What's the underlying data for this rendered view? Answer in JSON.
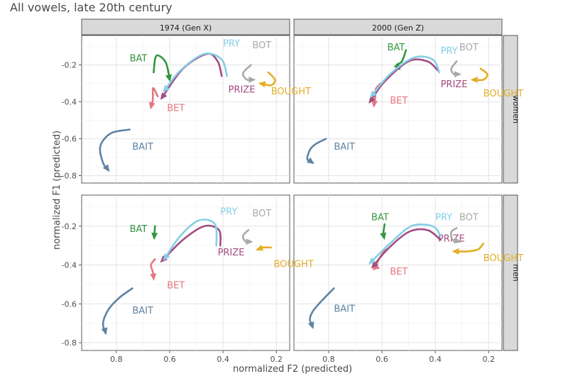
{
  "chart_data": {
    "type": "line",
    "title": "All vowels, late 20th century",
    "xlabel": "normalized F2 (predicted)",
    "ylabel": "normalized F1 (predicted)",
    "xlim": [
      0.93,
      0.15
    ],
    "ylim": [
      -0.04,
      -0.84
    ],
    "xticks": [
      "0.8",
      "0.6",
      "0.4",
      "0.2"
    ],
    "yticks": [
      "-0.8",
      "-0.6",
      "-0.4",
      "-0.2"
    ],
    "x_reversed": true,
    "y_reversed": true,
    "columns": [
      "1974 (Gen X)",
      "2000 (Gen Z)"
    ],
    "rows": [
      "women",
      "men"
    ],
    "grid": true,
    "colors": {
      "BAIT": "#5e83a3",
      "BET": "#e5767f",
      "BAT": "#33963f",
      "PRIZE": "#a34c83",
      "PRY": "#86cfe6",
      "BOUGHT": "#e4ae25",
      "BOT": "#a9a9a9"
    },
    "panels": [
      {
        "column": "1974 (Gen X)",
        "row": "women",
        "series": [
          {
            "name": "BAIT",
            "points": [
              [
                0.75,
                -0.55
              ],
              [
                0.82,
                -0.57
              ],
              [
                0.86,
                -0.64
              ],
              [
                0.85,
                -0.73
              ],
              [
                0.83,
                -0.77
              ]
            ],
            "label": [
              0.74,
              -0.66
            ]
          },
          {
            "name": "BET",
            "points": [
              [
                0.645,
                -0.37
              ],
              [
                0.662,
                -0.325
              ],
              [
                0.663,
                -0.385
              ],
              [
                0.67,
                -0.43
              ]
            ],
            "label": [
              0.61,
              -0.45
            ]
          },
          {
            "name": "BAT",
            "points": [
              [
                0.66,
                -0.24
              ],
              [
                0.65,
                -0.15
              ],
              [
                0.615,
                -0.185
              ],
              [
                0.6,
                -0.28
              ]
            ],
            "label": [
              0.75,
              -0.18
            ]
          },
          {
            "name": "PRIZE",
            "points": [
              [
                0.405,
                -0.26
              ],
              [
                0.42,
                -0.18
              ],
              [
                0.46,
                -0.14
              ],
              [
                0.55,
                -0.22
              ],
              [
                0.63,
                -0.38
              ]
            ],
            "label": [
              0.38,
              -0.35
            ]
          },
          {
            "name": "PRY",
            "points": [
              [
                0.385,
                -0.26
              ],
              [
                0.405,
                -0.17
              ],
              [
                0.47,
                -0.14
              ],
              [
                0.56,
                -0.23
              ],
              [
                0.62,
                -0.34
              ]
            ],
            "label": [
              0.4,
              -0.1
            ]
          },
          {
            "name": "BOUGHT",
            "points": [
              [
                0.23,
                -0.24
              ],
              [
                0.205,
                -0.28
              ],
              [
                0.22,
                -0.31
              ],
              [
                0.26,
                -0.3
              ]
            ],
            "label": [
              0.22,
              -0.36
            ]
          },
          {
            "name": "BOT",
            "points": [
              [
                0.295,
                -0.2
              ],
              [
                0.325,
                -0.245
              ],
              [
                0.31,
                -0.28
              ],
              [
                0.285,
                -0.28
              ]
            ],
            "label": [
              0.29,
              -0.11
            ]
          }
        ]
      },
      {
        "column": "2000 (Gen Z)",
        "row": "women",
        "series": [
          {
            "name": "BAIT",
            "points": [
              [
                0.81,
                -0.6
              ],
              [
                0.85,
                -0.63
              ],
              [
                0.87,
                -0.66
              ],
              [
                0.88,
                -0.71
              ],
              [
                0.86,
                -0.73
              ]
            ],
            "label": [
              0.78,
              -0.66
            ]
          },
          {
            "name": "BET",
            "points": [
              [
                0.605,
                -0.3
              ],
              [
                0.623,
                -0.33
              ],
              [
                0.625,
                -0.37
              ],
              [
                0.63,
                -0.42
              ]
            ],
            "label": [
              0.57,
              -0.41
            ]
          },
          {
            "name": "BAT",
            "points": [
              [
                0.51,
                -0.12
              ],
              [
                0.525,
                -0.18
              ],
              [
                0.545,
                -0.2
              ],
              [
                0.535,
                -0.22
              ]
            ],
            "label": [
              0.58,
              -0.12
            ]
          },
          {
            "name": "PRIZE",
            "points": [
              [
                0.39,
                -0.23
              ],
              [
                0.43,
                -0.18
              ],
              [
                0.5,
                -0.18
              ],
              [
                0.59,
                -0.29
              ],
              [
                0.645,
                -0.4
              ]
            ],
            "label": [
              0.38,
              -0.32
            ]
          },
          {
            "name": "PRY",
            "points": [
              [
                0.385,
                -0.24
              ],
              [
                0.41,
                -0.17
              ],
              [
                0.48,
                -0.16
              ],
              [
                0.57,
                -0.25
              ],
              [
                0.64,
                -0.37
              ]
            ],
            "label": [
              0.38,
              -0.14
            ]
          },
          {
            "name": "BOUGHT",
            "points": [
              [
                0.23,
                -0.22
              ],
              [
                0.205,
                -0.25
              ],
              [
                0.22,
                -0.28
              ],
              [
                0.26,
                -0.28
              ]
            ],
            "label": [
              0.22,
              -0.37
            ]
          },
          {
            "name": "BOT",
            "points": [
              [
                0.32,
                -0.18
              ],
              [
                0.34,
                -0.22
              ],
              [
                0.33,
                -0.25
              ],
              [
                0.31,
                -0.25
              ]
            ],
            "label": [
              0.31,
              -0.12
            ]
          }
        ]
      },
      {
        "column": "1974 (Gen X)",
        "row": "men",
        "series": [
          {
            "name": "BAIT",
            "points": [
              [
                0.74,
                -0.52
              ],
              [
                0.79,
                -0.57
              ],
              [
                0.83,
                -0.63
              ],
              [
                0.85,
                -0.7
              ],
              [
                0.84,
                -0.75
              ]
            ],
            "label": [
              0.74,
              -0.65
            ]
          },
          {
            "name": "BET",
            "points": [
              [
                0.655,
                -0.37
              ],
              [
                0.67,
                -0.4
              ],
              [
                0.662,
                -0.44
              ],
              [
                0.66,
                -0.47
              ]
            ],
            "label": [
              0.61,
              -0.52
            ]
          },
          {
            "name": "BAT",
            "points": [
              [
                0.655,
                -0.2
              ],
              [
                0.658,
                -0.26
              ]
            ],
            "label": [
              0.75,
              -0.23
            ]
          },
          {
            "name": "PRIZE",
            "points": [
              [
                0.41,
                -0.3
              ],
              [
                0.415,
                -0.22
              ],
              [
                0.47,
                -0.2
              ],
              [
                0.55,
                -0.27
              ],
              [
                0.63,
                -0.38
              ]
            ],
            "label": [
              0.42,
              -0.35
            ]
          },
          {
            "name": "PRY",
            "points": [
              [
                0.425,
                -0.3
              ],
              [
                0.43,
                -0.19
              ],
              [
                0.49,
                -0.17
              ],
              [
                0.56,
                -0.25
              ],
              [
                0.62,
                -0.37
              ]
            ],
            "label": [
              0.41,
              -0.14
            ]
          },
          {
            "name": "BOUGHT",
            "points": [
              [
                0.22,
                -0.31
              ],
              [
                0.25,
                -0.31
              ],
              [
                0.27,
                -0.32
              ]
            ],
            "label": [
              0.21,
              -0.41
            ]
          },
          {
            "name": "BOT",
            "points": [
              [
                0.305,
                -0.22
              ],
              [
                0.325,
                -0.25
              ],
              [
                0.315,
                -0.28
              ],
              [
                0.295,
                -0.28
              ]
            ],
            "label": [
              0.29,
              -0.15
            ]
          }
        ]
      },
      {
        "column": "2000 (Gen Z)",
        "row": "men",
        "series": [
          {
            "name": "BAIT",
            "points": [
              [
                0.78,
                -0.52
              ],
              [
                0.83,
                -0.59
              ],
              [
                0.86,
                -0.64
              ],
              [
                0.87,
                -0.68
              ],
              [
                0.86,
                -0.72
              ]
            ],
            "label": [
              0.78,
              -0.64
            ]
          },
          {
            "name": "BET",
            "points": [
              [
                0.58,
                -0.3
              ],
              [
                0.615,
                -0.38
              ],
              [
                0.62,
                -0.41
              ],
              [
                0.63,
                -0.42
              ]
            ],
            "label": [
              0.57,
              -0.45
            ]
          },
          {
            "name": "BAT",
            "points": [
              [
                0.59,
                -0.19
              ],
              [
                0.595,
                -0.24
              ],
              [
                0.592,
                -0.26
              ]
            ],
            "label": [
              0.64,
              -0.17
            ]
          },
          {
            "name": "PRIZE",
            "points": [
              [
                0.38,
                -0.27
              ],
              [
                0.43,
                -0.22
              ],
              [
                0.5,
                -0.23
              ],
              [
                0.58,
                -0.32
              ],
              [
                0.635,
                -0.41
              ]
            ],
            "label": [
              0.39,
              -0.28
            ]
          },
          {
            "name": "PRY",
            "points": [
              [
                0.38,
                -0.25
              ],
              [
                0.41,
                -0.2
              ],
              [
                0.49,
                -0.2
              ],
              [
                0.57,
                -0.29
              ],
              [
                0.645,
                -0.39
              ]
            ],
            "label": [
              0.4,
              -0.17
            ]
          },
          {
            "name": "BOUGHT",
            "points": [
              [
                0.22,
                -0.29
              ],
              [
                0.24,
                -0.32
              ],
              [
                0.28,
                -0.33
              ],
              [
                0.33,
                -0.33
              ]
            ],
            "label": [
              0.22,
              -0.38
            ]
          },
          {
            "name": "BOT",
            "points": [
              [
                0.32,
                -0.21
              ],
              [
                0.34,
                -0.23
              ],
              [
                0.335,
                -0.27
              ],
              [
                0.31,
                -0.28
              ]
            ],
            "label": [
              0.31,
              -0.17
            ]
          }
        ]
      }
    ]
  }
}
